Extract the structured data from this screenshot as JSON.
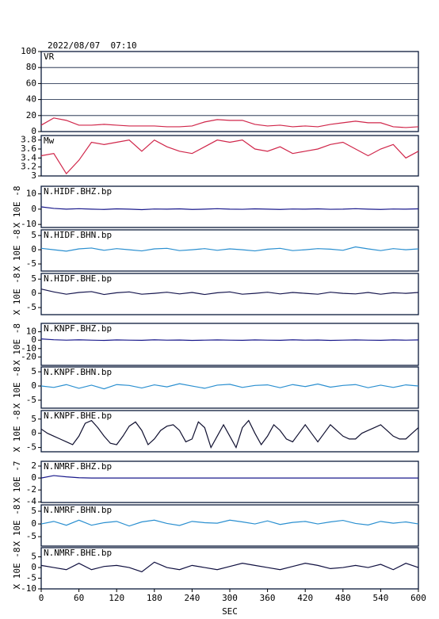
{
  "chart_data": [
    {
      "type": "line",
      "title": "2022/08/07  07:10",
      "name": "VR",
      "color": "#d0264a",
      "grid": true,
      "x": [
        0,
        20,
        40,
        60,
        80,
        100,
        120,
        140,
        160,
        180,
        200,
        220,
        240,
        260,
        280,
        300,
        320,
        340,
        360,
        380,
        400,
        420,
        440,
        460,
        480,
        500,
        520,
        540,
        560,
        580,
        600
      ],
      "values": [
        8,
        17,
        14,
        8,
        8,
        9,
        8,
        7,
        7,
        7,
        6,
        6,
        7,
        12,
        15,
        14,
        14,
        9,
        7,
        8,
        6,
        7,
        6,
        9,
        11,
        13,
        11,
        11,
        6,
        5,
        6
      ],
      "xlim": [
        0,
        600
      ],
      "ylim": [
        0,
        100
      ],
      "yticks": [
        0,
        20,
        40,
        60,
        80,
        100
      ]
    },
    {
      "type": "line",
      "name": "Mw",
      "color": "#d0264a",
      "grid": false,
      "x": [
        0,
        20,
        40,
        60,
        80,
        100,
        120,
        140,
        160,
        180,
        200,
        220,
        240,
        260,
        280,
        300,
        320,
        340,
        360,
        380,
        400,
        420,
        440,
        460,
        480,
        500,
        520,
        540,
        560,
        580,
        600
      ],
      "values": [
        3.45,
        3.5,
        3.05,
        3.35,
        3.75,
        3.7,
        3.75,
        3.8,
        3.55,
        3.8,
        3.65,
        3.55,
        3.5,
        3.65,
        3.8,
        3.75,
        3.8,
        3.6,
        3.55,
        3.65,
        3.5,
        3.55,
        3.6,
        3.7,
        3.75,
        3.6,
        3.45,
        3.6,
        3.7,
        3.4,
        3.55
      ],
      "xlim": [
        0,
        600
      ],
      "ylim": [
        3.0,
        3.9
      ],
      "yticks": [
        3.0,
        3.2,
        3.4,
        3.6,
        3.8
      ]
    },
    {
      "type": "line",
      "name": "N.HIDF.BHZ.bp",
      "y_label": "X 10E -8",
      "color": "#1a1a8c",
      "x": [
        0,
        20,
        40,
        60,
        80,
        100,
        120,
        140,
        160,
        180,
        200,
        220,
        240,
        260,
        280,
        300,
        320,
        340,
        360,
        380,
        400,
        420,
        440,
        460,
        480,
        500,
        520,
        540,
        560,
        580,
        600
      ],
      "values": [
        1.5,
        0.5,
        0,
        0.3,
        0,
        -0.2,
        0.2,
        0,
        -0.3,
        0.1,
        0,
        0.2,
        -0.2,
        0,
        0.3,
        0,
        -0.1,
        0.2,
        0,
        -0.2,
        0.1,
        0,
        0.2,
        -0.1,
        0,
        0.3,
        0,
        -0.2,
        0.1,
        0,
        0.2
      ],
      "xlim": [
        0,
        600
      ],
      "ylim": [
        -12,
        15
      ],
      "yticks": [
        -10,
        0,
        10
      ]
    },
    {
      "type": "line",
      "name": "N.HIDF.BHN.bp",
      "y_label": "X 10E -8",
      "color": "#2a8fd0",
      "x": [
        0,
        20,
        40,
        60,
        80,
        100,
        120,
        140,
        160,
        180,
        200,
        220,
        240,
        260,
        280,
        300,
        320,
        340,
        360,
        380,
        400,
        420,
        440,
        460,
        480,
        500,
        520,
        540,
        560,
        580,
        600
      ],
      "values": [
        0.5,
        0,
        -0.5,
        0.3,
        0.6,
        -0.2,
        0.4,
        0,
        -0.4,
        0.3,
        0.5,
        -0.3,
        0,
        0.4,
        -0.2,
        0.3,
        0,
        -0.4,
        0.2,
        0.5,
        -0.3,
        0,
        0.4,
        0.2,
        -0.2,
        1,
        0.3,
        -0.3,
        0.4,
        0,
        0.3
      ],
      "xlim": [
        0,
        600
      ],
      "ylim": [
        -7.5,
        7
      ],
      "yticks": [
        -5,
        0,
        5
      ]
    },
    {
      "type": "line",
      "name": "N.HIDF.BHE.bp",
      "y_label": "X 10E -8",
      "color": "#16164e",
      "x": [
        0,
        20,
        40,
        60,
        80,
        100,
        120,
        140,
        160,
        180,
        200,
        220,
        240,
        260,
        280,
        300,
        320,
        340,
        360,
        380,
        400,
        420,
        440,
        460,
        480,
        500,
        520,
        540,
        560,
        580,
        600
      ],
      "values": [
        1.5,
        0.5,
        -0.3,
        0.3,
        0.6,
        -0.4,
        0.2,
        0.5,
        -0.3,
        0,
        0.4,
        -0.2,
        0.3,
        -0.4,
        0.2,
        0.5,
        -0.3,
        0,
        0.4,
        -0.2,
        0.3,
        0,
        -0.3,
        0.4,
        0,
        -0.2,
        0.3,
        -0.3,
        0.2,
        0,
        0.3
      ],
      "xlim": [
        0,
        600
      ],
      "ylim": [
        -7.5,
        7
      ],
      "yticks": [
        -5,
        0,
        5
      ]
    },
    {
      "type": "line",
      "name": "N.KNPF.BHZ.bp",
      "y_label": "X 10E -8",
      "color": "#1a1a8c",
      "x": [
        0,
        20,
        40,
        60,
        80,
        100,
        120,
        140,
        160,
        180,
        200,
        220,
        240,
        260,
        280,
        300,
        320,
        340,
        360,
        380,
        400,
        420,
        440,
        460,
        480,
        500,
        520,
        540,
        560,
        580,
        600
      ],
      "values": [
        1.5,
        0.5,
        0,
        0.4,
        0,
        -0.3,
        0.3,
        0,
        -0.2,
        0.4,
        0,
        0.2,
        -0.3,
        0,
        0.3,
        0,
        -0.2,
        0.3,
        0,
        -0.2,
        0.4,
        0,
        0.2,
        -0.3,
        0,
        0.3,
        0,
        -0.2,
        0.3,
        0,
        0.3
      ],
      "xlim": [
        0,
        600
      ],
      "ylim": [
        -30,
        20
      ],
      "yticks": [
        -20,
        -10,
        0,
        10
      ]
    },
    {
      "type": "line",
      "name": "N.KNPF.BHN.bp",
      "y_label": "X 10E -8",
      "color": "#2a8fd0",
      "x": [
        0,
        20,
        40,
        60,
        80,
        100,
        120,
        140,
        160,
        180,
        200,
        220,
        240,
        260,
        280,
        300,
        320,
        340,
        360,
        380,
        400,
        420,
        440,
        460,
        480,
        500,
        520,
        540,
        560,
        580,
        600
      ],
      "values": [
        0,
        -0.5,
        0.5,
        -0.8,
        0.3,
        -1,
        0.5,
        0.2,
        -0.7,
        0.4,
        -0.3,
        0.8,
        0,
        -0.8,
        0.3,
        0.6,
        -0.5,
        0.2,
        0.4,
        -0.6,
        0.5,
        -0.2,
        0.7,
        -0.4,
        0.2,
        0.5,
        -0.6,
        0.3,
        -0.5,
        0.4,
        0
      ],
      "xlim": [
        0,
        600
      ],
      "ylim": [
        -7.8,
        6.7
      ],
      "yticks": [
        -5,
        0,
        5
      ]
    },
    {
      "type": "line",
      "name": "N.KNPF.BHE.bp",
      "y_label": "X 10E -8",
      "color": "#101030",
      "x": [
        0,
        10,
        20,
        30,
        40,
        50,
        60,
        70,
        80,
        90,
        100,
        110,
        120,
        130,
        140,
        150,
        160,
        170,
        180,
        190,
        200,
        210,
        220,
        230,
        240,
        250,
        260,
        270,
        280,
        290,
        300,
        310,
        320,
        330,
        340,
        350,
        360,
        370,
        380,
        390,
        400,
        410,
        420,
        430,
        440,
        450,
        460,
        470,
        480,
        490,
        500,
        510,
        520,
        530,
        540,
        550,
        560,
        570,
        580,
        590,
        600
      ],
      "values": [
        1.5,
        0,
        -1,
        -2,
        -3,
        -4,
        -1,
        3.5,
        4.5,
        2,
        -1,
        -3.5,
        -4,
        -1,
        2.5,
        4,
        1,
        -4,
        -2,
        1,
        2.5,
        3,
        1,
        -3,
        -2,
        4,
        2,
        -5,
        -1,
        3,
        -1,
        -5,
        2,
        4.5,
        0,
        -4,
        -1,
        3,
        1,
        -2,
        -3,
        0,
        3,
        0,
        -3,
        0,
        3,
        1,
        -1,
        -2,
        -2,
        0,
        1,
        2,
        3,
        1,
        -1,
        -2,
        -2,
        0,
        2
      ],
      "xlim": [
        0,
        600
      ],
      "ylim": [
        -6.5,
        8
      ],
      "yticks": [
        -5,
        0,
        5
      ]
    },
    {
      "type": "line",
      "name": "N.NMRF.BHZ.bp",
      "y_label": "X 10E -7",
      "color": "#1a1a8c",
      "x": [
        0,
        20,
        40,
        60,
        80,
        100,
        120,
        140,
        160,
        180,
        200,
        220,
        240,
        260,
        280,
        300,
        320,
        340,
        360,
        380,
        400,
        420,
        440,
        460,
        480,
        500,
        520,
        540,
        560,
        580,
        600
      ],
      "values": [
        0,
        0.4,
        0.2,
        0.05,
        0,
        0,
        0,
        0,
        0,
        0,
        0,
        0,
        0,
        0,
        0,
        0,
        0,
        0,
        0,
        0,
        0,
        0,
        0,
        0,
        0,
        0,
        0,
        0,
        0,
        0,
        0
      ],
      "xlim": [
        0,
        600
      ],
      "ylim": [
        -4.1,
        2.8
      ],
      "yticks": [
        -4,
        -2,
        0,
        2
      ]
    },
    {
      "type": "line",
      "name": "N.NMRF.BHN.bp",
      "y_label": "X 10E -8",
      "color": "#2a8fd0",
      "x": [
        0,
        20,
        40,
        60,
        80,
        100,
        120,
        140,
        160,
        180,
        200,
        220,
        240,
        260,
        280,
        300,
        320,
        340,
        360,
        380,
        400,
        420,
        440,
        460,
        480,
        500,
        520,
        540,
        560,
        580,
        600
      ],
      "values": [
        0,
        1,
        -0.5,
        1.5,
        -0.5,
        0.5,
        1,
        -0.8,
        0.8,
        1.5,
        0.2,
        -0.6,
        1,
        0.5,
        0.3,
        1.5,
        0.8,
        0,
        1.2,
        -0.2,
        0.6,
        1,
        0,
        0.8,
        1.4,
        0.2,
        -0.4,
        1,
        0.3,
        0.8,
        0
      ],
      "xlim": [
        0,
        600
      ],
      "ylim": [
        -8.7,
        7.5
      ],
      "yticks": [
        -5,
        0,
        5
      ]
    },
    {
      "type": "line",
      "name": "N.NMRF.BHE.bp",
      "y_label": "X 10E -8",
      "color": "#101040",
      "x_label": "SEC",
      "x": [
        0,
        20,
        40,
        60,
        80,
        100,
        120,
        140,
        160,
        180,
        200,
        220,
        240,
        260,
        280,
        300,
        320,
        340,
        360,
        380,
        400,
        420,
        440,
        460,
        480,
        500,
        520,
        540,
        560,
        580,
        600
      ],
      "values": [
        1,
        0,
        -1,
        2,
        -1,
        0.5,
        1,
        0,
        -2,
        2.5,
        0,
        -1,
        1,
        0,
        -1,
        0.5,
        2,
        1,
        0,
        -1,
        0.5,
        2,
        1,
        -0.5,
        0,
        1,
        0,
        1.5,
        -1,
        2,
        0
      ],
      "xlim": [
        0,
        600
      ],
      "ylim": [
        -10,
        9.3
      ],
      "yticks": [
        -10,
        -5,
        0,
        5
      ],
      "xticks": [
        0,
        60,
        120,
        180,
        240,
        300,
        360,
        420,
        480,
        540,
        600
      ]
    }
  ]
}
